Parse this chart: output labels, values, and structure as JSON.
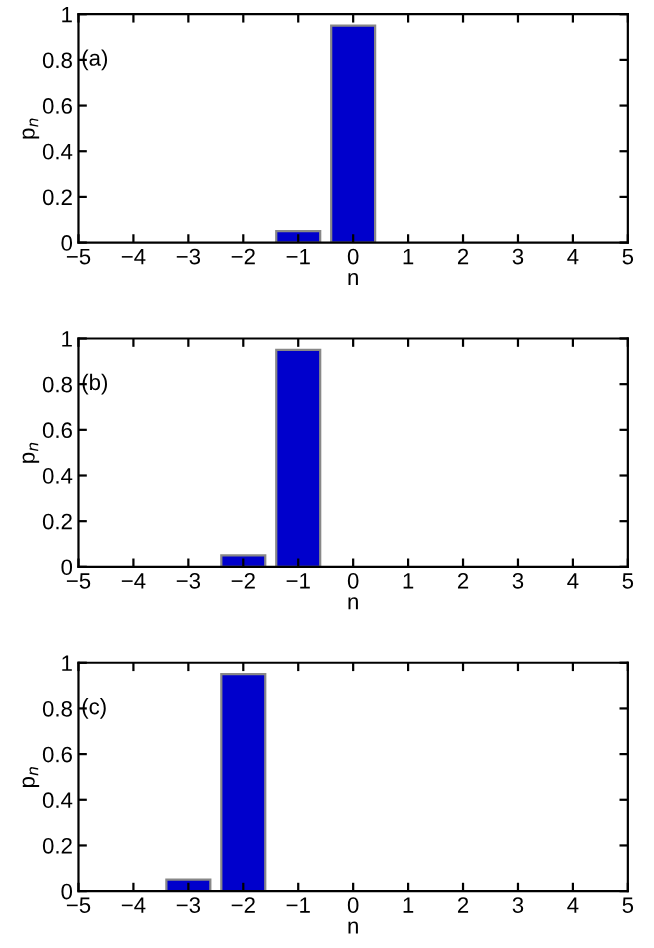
{
  "chart_data": [
    {
      "type": "bar",
      "x": [
        -4,
        -3,
        -2,
        -1,
        0,
        1,
        2,
        3,
        4
      ],
      "values": [
        0,
        0,
        0,
        0.05,
        0.95,
        0,
        0,
        0,
        0
      ],
      "color": "#0000cc",
      "xlabel": "n",
      "ylabel": "p$_{n}$",
      "annotations": [
        "(a)"
      ],
      "xlim": [
        -5,
        5
      ],
      "ylim": [
        0,
        1
      ],
      "xticks": [
        {
          "value": -5,
          "label": "−5"
        },
        {
          "value": -4,
          "label": "−4"
        },
        {
          "value": -3,
          "label": "−3"
        },
        {
          "value": -2,
          "label": "−2"
        },
        {
          "value": -1,
          "label": "−1"
        },
        0,
        1,
        2,
        3,
        4,
        5
      ],
      "yticks": [
        0,
        0.2,
        0.4,
        0.6,
        0.8,
        1
      ]
    },
    {
      "type": "bar",
      "x": [
        -4,
        -3,
        -2,
        -1,
        0,
        1,
        2,
        3,
        4
      ],
      "values": [
        0,
        0,
        0.05,
        0.95,
        0,
        0,
        0,
        0,
        0
      ],
      "color": "#0000cc",
      "xlabel": "n",
      "ylabel": "p$_{n}$",
      "annotations": [
        "(b)"
      ],
      "xlim": [
        -5,
        5
      ],
      "ylim": [
        0,
        1
      ],
      "xticks": [
        {
          "value": -5,
          "label": "−5"
        },
        {
          "value": -4,
          "label": "−4"
        },
        {
          "value": -3,
          "label": "−3"
        },
        {
          "value": -2,
          "label": "−2"
        },
        {
          "value": -1,
          "label": "−1"
        },
        0,
        1,
        2,
        3,
        4,
        5
      ],
      "yticks": [
        0,
        0.2,
        0.4,
        0.6,
        0.8,
        1
      ]
    },
    {
      "type": "bar",
      "x": [
        -4,
        -3,
        -2,
        -1,
        0,
        1,
        2,
        3,
        4
      ],
      "values": [
        0,
        0.05,
        0.95,
        0,
        0,
        0,
        0,
        0,
        0
      ],
      "color": "#0000cc",
      "xlabel": "n",
      "ylabel": "p$_{n}$",
      "annotations": [
        "(c)"
      ],
      "xlim": [
        -5,
        5
      ],
      "ylim": [
        0,
        1
      ],
      "xticks": [
        {
          "value": -5,
          "label": "−5"
        },
        {
          "value": -4,
          "label": "−4"
        },
        {
          "value": -3,
          "label": "−3"
        },
        {
          "value": -2,
          "label": "−2"
        },
        {
          "value": -1,
          "label": "−1"
        },
        0,
        1,
        2,
        3,
        4,
        5
      ],
      "yticks": [
        0,
        0.2,
        0.4,
        0.6,
        0.8,
        1
      ]
    }
  ]
}
